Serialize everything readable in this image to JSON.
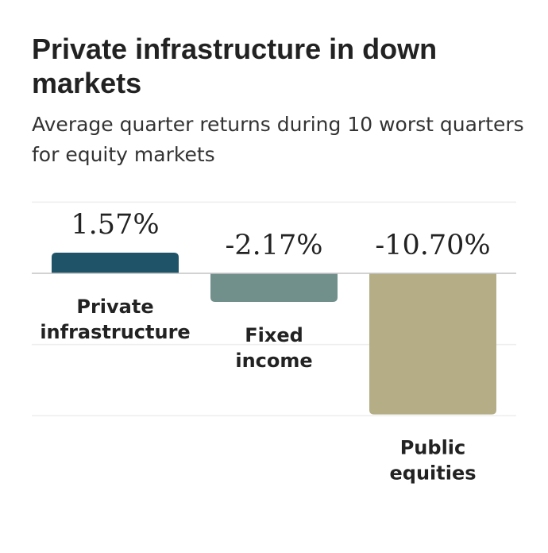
{
  "title": "Private infrastructure in down markets",
  "subtitle": "Average quarter returns during 10 worst quarters for equity markets",
  "chart_data": {
    "type": "bar",
    "categories": [
      "Private infrastructure",
      "Fixed income",
      "Public equities"
    ],
    "category_lines": [
      [
        "Private",
        "infrastructure"
      ],
      [
        "Fixed",
        "income"
      ],
      [
        "Public",
        "equities"
      ]
    ],
    "values": [
      1.57,
      -2.17,
      -10.7
    ],
    "value_labels": [
      "1.57%",
      "-2.17%",
      "-10.70%"
    ],
    "unit": "%",
    "ylim": [
      -12,
      6
    ],
    "grid": true,
    "colors": [
      "#1f5468",
      "#71908c",
      "#b5ad85"
    ]
  }
}
